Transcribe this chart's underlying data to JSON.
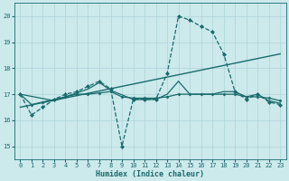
{
  "bg_color": "#cce9ec",
  "grid_color": "#afd4d8",
  "line_color": "#1a6b6b",
  "xlabel": "Humidex (Indice chaleur)",
  "xlim": [
    -0.5,
    23.5
  ],
  "ylim": [
    14.5,
    20.5
  ],
  "yticks": [
    15,
    16,
    17,
    18,
    19,
    20
  ],
  "xticks": [
    0,
    1,
    2,
    3,
    4,
    5,
    6,
    7,
    8,
    9,
    10,
    11,
    12,
    13,
    14,
    15,
    16,
    17,
    18,
    19,
    20,
    21,
    22,
    23
  ],
  "series": [
    {
      "x": [
        0,
        1,
        2,
        3,
        4,
        5,
        6,
        7,
        8,
        9,
        10,
        11,
        12,
        13,
        14,
        15,
        16,
        17,
        18,
        19,
        20,
        21,
        22,
        23
      ],
      "y": [
        17.0,
        16.2,
        16.5,
        16.8,
        17.0,
        17.1,
        17.3,
        17.5,
        17.2,
        15.0,
        16.8,
        16.8,
        16.8,
        17.8,
        20.0,
        19.85,
        19.6,
        19.4,
        18.55,
        17.1,
        16.8,
        17.0,
        16.7,
        16.6
      ],
      "marker": "D",
      "linestyle": "--",
      "linewidth": 0.9,
      "markersize": 2.0
    },
    {
      "x": [
        0,
        23
      ],
      "y": [
        16.5,
        18.55
      ],
      "marker": null,
      "linestyle": "-",
      "linewidth": 1.0,
      "markersize": 0
    },
    {
      "x": [
        0,
        1,
        2,
        3,
        4,
        5,
        6,
        7,
        8,
        9,
        10,
        11,
        12,
        13,
        14,
        15,
        16,
        17,
        18,
        19,
        20,
        21,
        22,
        23
      ],
      "y": [
        17.0,
        16.6,
        16.7,
        16.8,
        16.9,
        17.0,
        17.0,
        17.05,
        17.1,
        16.9,
        16.85,
        16.85,
        16.85,
        16.9,
        17.0,
        17.0,
        17.0,
        17.0,
        17.0,
        17.0,
        16.9,
        16.9,
        16.85,
        16.75
      ],
      "marker": "D",
      "linestyle": "-",
      "linewidth": 0.9,
      "markersize": 1.5
    },
    {
      "x": [
        0,
        3,
        5,
        6,
        7,
        8,
        10,
        11,
        12,
        13,
        14,
        15,
        16,
        17,
        18,
        19,
        20,
        21,
        22,
        23
      ],
      "y": [
        17.0,
        16.75,
        17.05,
        17.2,
        17.45,
        17.15,
        16.8,
        16.8,
        16.8,
        17.0,
        17.5,
        17.0,
        17.0,
        17.0,
        17.1,
        17.1,
        16.9,
        17.0,
        16.75,
        16.65
      ],
      "marker": null,
      "linestyle": "-",
      "linewidth": 0.9,
      "markersize": 0
    }
  ]
}
